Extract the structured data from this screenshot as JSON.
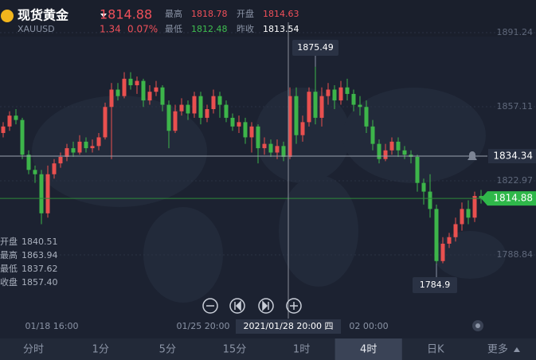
{
  "header": {
    "name": "现货黄金",
    "symbol": "XAUUSD",
    "price": 1814.88,
    "change": 1.34,
    "change_pct": "0.07%",
    "stats": [
      {
        "label": "最高",
        "value": 1818.78
      },
      {
        "label": "开盘",
        "value": 1814.63
      },
      {
        "label": "最低",
        "value": 1812.48
      },
      {
        "label": "昨收",
        "value": 1813.54
      }
    ]
  },
  "chart_data": {
    "type": "candlestick",
    "ylim": [
      1759.5,
      1896.0
    ],
    "yticks": [
      1891.24,
      1857.11,
      1822.97,
      1788.84
    ],
    "open": [
      1845,
      1848,
      1853,
      1851,
      1835,
      1828,
      1826,
      1808,
      1826,
      1831,
      1834,
      1838,
      1836,
      1841,
      1838,
      1839,
      1843,
      1857,
      1865,
      1862,
      1870,
      1867,
      1869,
      1860,
      1864,
      1866,
      1858,
      1846,
      1855,
      1858,
      1854,
      1862,
      1852,
      1856,
      1862,
      1858,
      1852,
      1848,
      1850,
      1843,
      1848,
      1838,
      1840,
      1836,
      1839,
      1834,
      1862,
      1844,
      1850,
      1864,
      1852,
      1862,
      1865,
      1860,
      1866,
      1863,
      1858,
      1857,
      1848,
      1840,
      1833,
      1837,
      1841,
      1837,
      1835,
      1834,
      1822,
      1818,
      1810,
      1786,
      1794,
      1797,
      1803,
      1810,
      1806,
      1816
    ],
    "high": [
      1850,
      1855,
      1856,
      1852,
      1837,
      1830,
      1828,
      1830,
      1833,
      1836,
      1840,
      1841,
      1844,
      1843,
      1842,
      1845,
      1859,
      1868,
      1868,
      1873,
      1873,
      1871,
      1870,
      1867,
      1869,
      1867,
      1860,
      1858,
      1861,
      1860,
      1864,
      1864,
      1858,
      1865,
      1864,
      1860,
      1854,
      1853,
      1852,
      1850,
      1849,
      1843,
      1842,
      1842,
      1841,
      1866,
      1866,
      1853,
      1866,
      1875.49,
      1866,
      1868,
      1867,
      1869,
      1870,
      1865,
      1862,
      1860,
      1851,
      1842,
      1840,
      1843,
      1843,
      1839,
      1837,
      1835,
      1824,
      1826,
      1812,
      1797,
      1799,
      1806,
      1813,
      1814,
      1818,
      1818.78
    ],
    "low": [
      1843,
      1846,
      1849,
      1833,
      1826,
      1822,
      1803,
      1806,
      1824,
      1829,
      1832,
      1834,
      1835,
      1836,
      1836,
      1837,
      1842,
      1833,
      1860,
      1861,
      1865,
      1863,
      1857,
      1858,
      1862,
      1855,
      1838,
      1845,
      1853,
      1851,
      1852,
      1849,
      1850,
      1854,
      1852,
      1850,
      1846,
      1845,
      1840,
      1836,
      1831,
      1835,
      1834,
      1833,
      1832,
      1833,
      1840,
      1841,
      1848,
      1849,
      1848,
      1858,
      1856,
      1858,
      1860,
      1855,
      1853,
      1845,
      1837,
      1831,
      1832,
      1835,
      1834,
      1833,
      1831,
      1818,
      1812,
      1806,
      1784.9,
      1785,
      1792,
      1795,
      1800,
      1803,
      1804,
      1812.48
    ],
    "close": [
      1848,
      1853,
      1851,
      1835,
      1828,
      1826,
      1808,
      1826,
      1831,
      1834,
      1838,
      1836,
      1841,
      1838,
      1839,
      1843,
      1857,
      1865,
      1862,
      1870,
      1867,
      1869,
      1860,
      1864,
      1866,
      1858,
      1846,
      1855,
      1858,
      1854,
      1862,
      1852,
      1856,
      1862,
      1858,
      1852,
      1848,
      1850,
      1843,
      1848,
      1838,
      1840,
      1836,
      1839,
      1834,
      1862,
      1844,
      1850,
      1864,
      1852,
      1862,
      1865,
      1860,
      1866,
      1863,
      1858,
      1857,
      1848,
      1840,
      1833,
      1837,
      1841,
      1837,
      1835,
      1834,
      1822,
      1818,
      1810,
      1786,
      1794,
      1797,
      1803,
      1810,
      1806,
      1816,
      1814.88
    ],
    "up_color": "#e9504f",
    "down_color": "#3db54a",
    "max_label": 1875.49,
    "min_label": 1784.9,
    "alert_price": 1834.34,
    "last_price": 1814.88,
    "xlabels": [
      "01/18 16:00",
      "01/25 20:00",
      "02 00:00"
    ],
    "crosshair": {
      "time": "2021/01/28 20:00 四",
      "rows": [
        {
          "label": "开盘",
          "value": "1840.51"
        },
        {
          "label": "最高",
          "value": "1863.94"
        },
        {
          "label": "最低",
          "value": "1837.62"
        },
        {
          "label": "收盘",
          "value": "1857.40"
        }
      ]
    }
  },
  "tabs": [
    "分时",
    "1分",
    "5分",
    "15分",
    "1时",
    "4时",
    "日K",
    "更多"
  ],
  "selected_tab": 5
}
